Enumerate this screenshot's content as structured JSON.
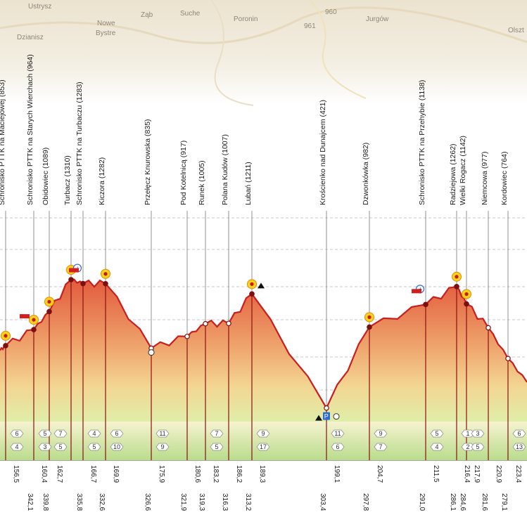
{
  "map": {
    "labels": [
      "Ustrysz",
      "Nowe",
      "Bystre",
      "Ząb",
      "Suche",
      "Poronin",
      "Jurgów",
      "Olszt",
      "Dzianisz",
      "961",
      "960"
    ]
  },
  "chart_data": {
    "type": "line",
    "title": "",
    "xlabel": "",
    "ylabel": "",
    "points": [
      {
        "label": "Schronisko PTTK na Maciejowej (853)",
        "elev": 853,
        "km": "156,5",
        "rev": "",
        "icon": "sun",
        "hut": false,
        "a": "6",
        "b": "4"
      },
      {
        "label": "Schronisko PTTK na Starych Wierchach (964)",
        "elev": 964,
        "km": "160,4",
        "rev": "342,1",
        "icon": "sun",
        "hut": true,
        "a": "5",
        "b": "3"
      },
      {
        "label": "Obidowiec (1089)",
        "elev": 1089,
        "km": "162,7",
        "rev": "339,8",
        "icon": "sun",
        "hut": false,
        "a": "7",
        "b": "5"
      },
      {
        "label": "Turbacz (1310)",
        "elev": 1310,
        "km": "",
        "rev": "",
        "icon": "sun",
        "hut": false,
        "a": "",
        "b": ""
      },
      {
        "label": "Schronisko PTTK na Turbaczu (1283)",
        "elev": 1283,
        "km": "166,7",
        "rev": "335,8",
        "icon": "info",
        "hut": true,
        "a": "4",
        "b": "5"
      },
      {
        "label": "Kiczora (1282)",
        "elev": 1282,
        "km": "169,9",
        "rev": "332,6",
        "icon": "sun",
        "hut": false,
        "a": "6",
        "b": "10"
      },
      {
        "label": "Przełęcz Knurowska (835)",
        "elev": 835,
        "km": "175,9",
        "rev": "326,6",
        "icon": "",
        "hut": false,
        "a": "11",
        "b": "9"
      },
      {
        "label": "Pod Kotelnicą (917)",
        "elev": 917,
        "km": "180,6",
        "rev": "321,9",
        "icon": "",
        "hut": false,
        "a": "",
        "b": ""
      },
      {
        "label": "Runek (1005)",
        "elev": 1005,
        "km": "183,2",
        "rev": "319,3",
        "icon": "",
        "hut": false,
        "a": "7",
        "b": "5"
      },
      {
        "label": "Polana Kudów (1007)",
        "elev": 1007,
        "km": "186,2",
        "rev": "316,3",
        "icon": "",
        "hut": false,
        "a": "",
        "b": ""
      },
      {
        "label": "Lubań (1211)",
        "elev": 1211,
        "km": "189,3",
        "rev": "313,2",
        "icon": "sun",
        "hut": false,
        "a": "9",
        "b": "17"
      },
      {
        "label": "Krościenko nad Dunajcem (421)",
        "elev": 421,
        "km": "199,1",
        "rev": "303,4",
        "icon": "",
        "hut": false,
        "a": "11",
        "b": "6"
      },
      {
        "label": "Dzwonkówka (982)",
        "elev": 982,
        "km": "204,7",
        "rev": "297,8",
        "icon": "sun",
        "hut": false,
        "a": "9",
        "b": "7"
      },
      {
        "label": "Schronisko PTTK na Przehybie (1138)",
        "elev": 1138,
        "km": "211,5",
        "rev": "291,0",
        "icon": "info",
        "hut": true,
        "a": "5",
        "b": "4"
      },
      {
        "label": "Radziejowa (1262)",
        "elev": 1262,
        "km": "216,4",
        "rev": "286,1",
        "icon": "sun",
        "hut": false,
        "a": "1",
        "b": "2"
      },
      {
        "label": "Wielki Rogacz (1142)",
        "elev": 1142,
        "km": "217,9",
        "rev": "284,6",
        "icon": "sun",
        "hut": false,
        "a": "3",
        "b": "5"
      },
      {
        "label": "Niemcowa (977)",
        "elev": 977,
        "km": "220,9",
        "rev": "281,6",
        "icon": "",
        "hut": false,
        "a": "",
        "b": ""
      },
      {
        "label": "Kordowiec (764)",
        "elev": 764,
        "km": "223,4",
        "rev": "279,1",
        "icon": "",
        "hut": false,
        "a": "6",
        "b": "13"
      }
    ]
  }
}
